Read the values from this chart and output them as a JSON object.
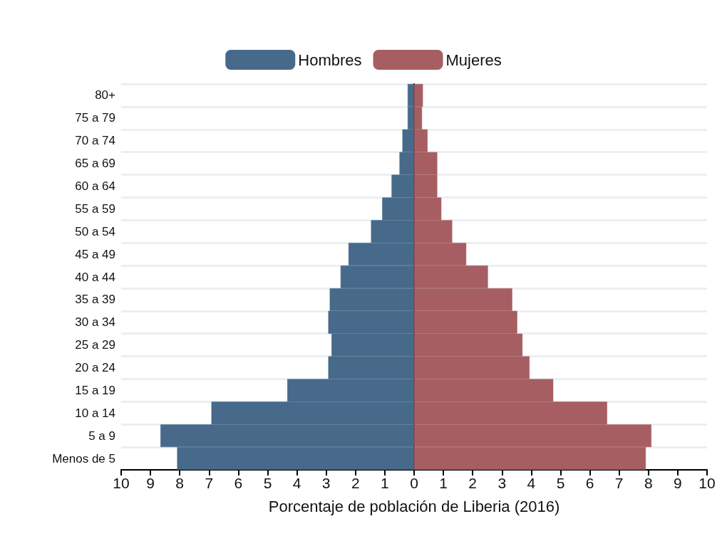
{
  "chart_data": {
    "type": "bar",
    "orientation": "horizontal",
    "xlabel": "Porcentaje de población de Liberia (2016)",
    "categories": [
      "80+",
      "75 a 79",
      "70 a 74",
      "65 a 69",
      "60 a 64",
      "55 a 59",
      "50 a 54",
      "45 a 49",
      "40 a 44",
      "35 a 39",
      "30 a 34",
      "25 a 29",
      "20 a 24",
      "15 a 19",
      "10 a 14",
      "5 a 9",
      "Menos de 5"
    ],
    "series": [
      {
        "name": "Hombres",
        "color": "#476a8b",
        "values": [
          -0.22,
          -0.22,
          -0.4,
          -0.5,
          -0.77,
          -1.09,
          -1.47,
          -2.24,
          -2.51,
          -2.88,
          -2.93,
          -2.82,
          -2.93,
          -4.33,
          -6.92,
          -8.66,
          -8.09
        ]
      },
      {
        "name": "Mujeres",
        "color": "#a65e62",
        "values": [
          0.3,
          0.27,
          0.46,
          0.79,
          0.79,
          0.93,
          1.3,
          1.78,
          2.52,
          3.35,
          3.52,
          3.7,
          3.94,
          4.75,
          6.59,
          8.1,
          7.91
        ]
      }
    ],
    "xlim": [
      -10,
      10
    ],
    "xticks": [
      {
        "value": -10,
        "label": "10"
      },
      {
        "value": -9,
        "label": "9"
      },
      {
        "value": -8,
        "label": "8"
      },
      {
        "value": -7,
        "label": "7"
      },
      {
        "value": -6,
        "label": "6"
      },
      {
        "value": -5,
        "label": "5"
      },
      {
        "value": -4,
        "label": "4"
      },
      {
        "value": -3,
        "label": "3"
      },
      {
        "value": -2,
        "label": "2"
      },
      {
        "value": -1,
        "label": "1"
      },
      0,
      1,
      2,
      3,
      4,
      5,
      6,
      7,
      8,
      9,
      10
    ],
    "stacked": true,
    "grid": "y",
    "legend": "top"
  }
}
